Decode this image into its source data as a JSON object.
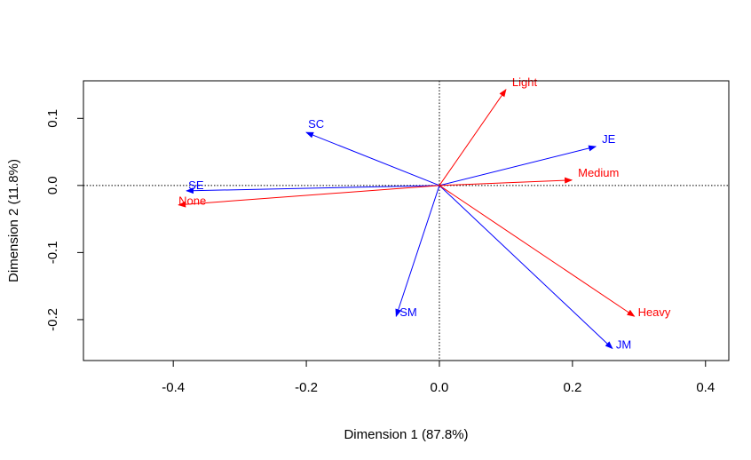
{
  "chart_data": {
    "type": "scatter",
    "title": "",
    "xlabel": "Dimension 1 (87.8%)",
    "ylabel": "Dimension 2 (11.8%)",
    "xlim": [
      -0.535,
      0.435
    ],
    "ylim": [
      -0.261,
      0.156
    ],
    "x_ticks": [
      -0.4,
      -0.2,
      0.0,
      0.2,
      0.4
    ],
    "x_tick_labels": [
      "-0.4",
      "-0.2",
      "0.0",
      "0.2",
      "0.4"
    ],
    "y_ticks": [
      -0.2,
      -0.1,
      0.0,
      0.1
    ],
    "y_tick_labels": [
      "-0.2",
      "-0.1",
      "0.0",
      "0.1"
    ],
    "reference_lines": {
      "x": 0,
      "y": 0,
      "style": "dotted"
    },
    "grid": false,
    "series": [
      {
        "color": "#0000ff",
        "points": [
          {
            "label": "SE",
            "x": -0.38,
            "y": -0.008
          },
          {
            "label": "SC",
            "x": -0.2,
            "y": 0.079
          },
          {
            "label": "JE",
            "x": 0.235,
            "y": 0.058
          },
          {
            "label": "SM",
            "x": -0.065,
            "y": -0.195
          },
          {
            "label": "JM",
            "x": 0.26,
            "y": -0.243
          }
        ]
      },
      {
        "color": "#ff0000",
        "points": [
          {
            "label": "None",
            "x": -0.392,
            "y": -0.029
          },
          {
            "label": "Light",
            "x": 0.1,
            "y": 0.143
          },
          {
            "label": "Medium",
            "x": 0.199,
            "y": 0.008
          },
          {
            "label": "Heavy",
            "x": 0.293,
            "y": -0.195
          }
        ]
      }
    ]
  }
}
